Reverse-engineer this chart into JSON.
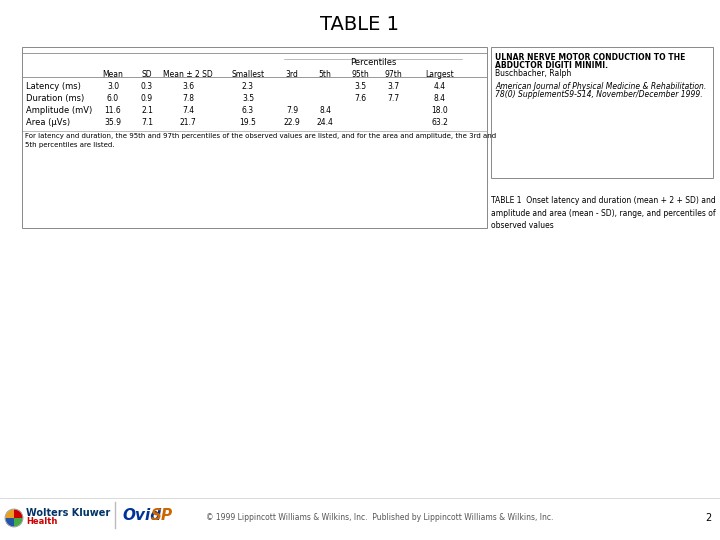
{
  "title": "TABLE 1",
  "title_fontsize": 14,
  "background_color": "#ffffff",
  "table": {
    "col_headers": [
      "",
      "Mean",
      "SD",
      "Mean ± 2 SD",
      "Smallest",
      "3rd",
      "5th",
      "95th",
      "97th",
      "Largest"
    ],
    "percentile_header": "Percentiles",
    "rows": [
      [
        "Latency (ms)",
        "3.0",
        "0.3",
        "3.6",
        "2.3",
        "",
        "",
        "3.5",
        "3.7",
        "4.4"
      ],
      [
        "Duration (ms)",
        "6.0",
        "0.9",
        "7.8",
        "3.5",
        "",
        "",
        "7.6",
        "7.7",
        "8.4"
      ],
      [
        "Amplitude (mV)",
        "11.6",
        "2.1",
        "7.4",
        "6.3",
        "7.9",
        "8.4",
        "",
        "",
        "18.0"
      ],
      [
        "Area (μVs)",
        "35.9",
        "7.1",
        "21.7",
        "19.5",
        "22.9",
        "24.4",
        "",
        "",
        "63.2"
      ]
    ],
    "footnote": "For latency and duration, the 95th and 97th percentiles of the observed values are listed, and for the area and amplitude, the 3rd and\n5th percentiles are listed."
  },
  "side_box": {
    "title_lines": [
      "ULNAR NERVE MOTOR CONDUCTION TO THE",
      "ABDUCTOR DIGITI MINIMI."
    ],
    "author": "Buschbacher, Ralph",
    "journal": "American Journal of Physical Medicine & Rehabilitation.",
    "journal_detail": "78(0) SupplementS9-S14, November/December 1999."
  },
  "caption": "TABLE 1  Onset latency and duration (mean + 2 + SD) and\namplitude and area (mean - SD), range, and percentiles of\nobserved values",
  "footer": "© 1999 Lippincott Williams & Wilkins, Inc.  Published by Lippincott Williams & Wilkins, Inc.",
  "page_number": "2",
  "logo_text_wk": "Wolters Kluwer",
  "logo_text_wk2": "Health",
  "logo_ovid1": "Ovid",
  "logo_ovid2": "SP"
}
